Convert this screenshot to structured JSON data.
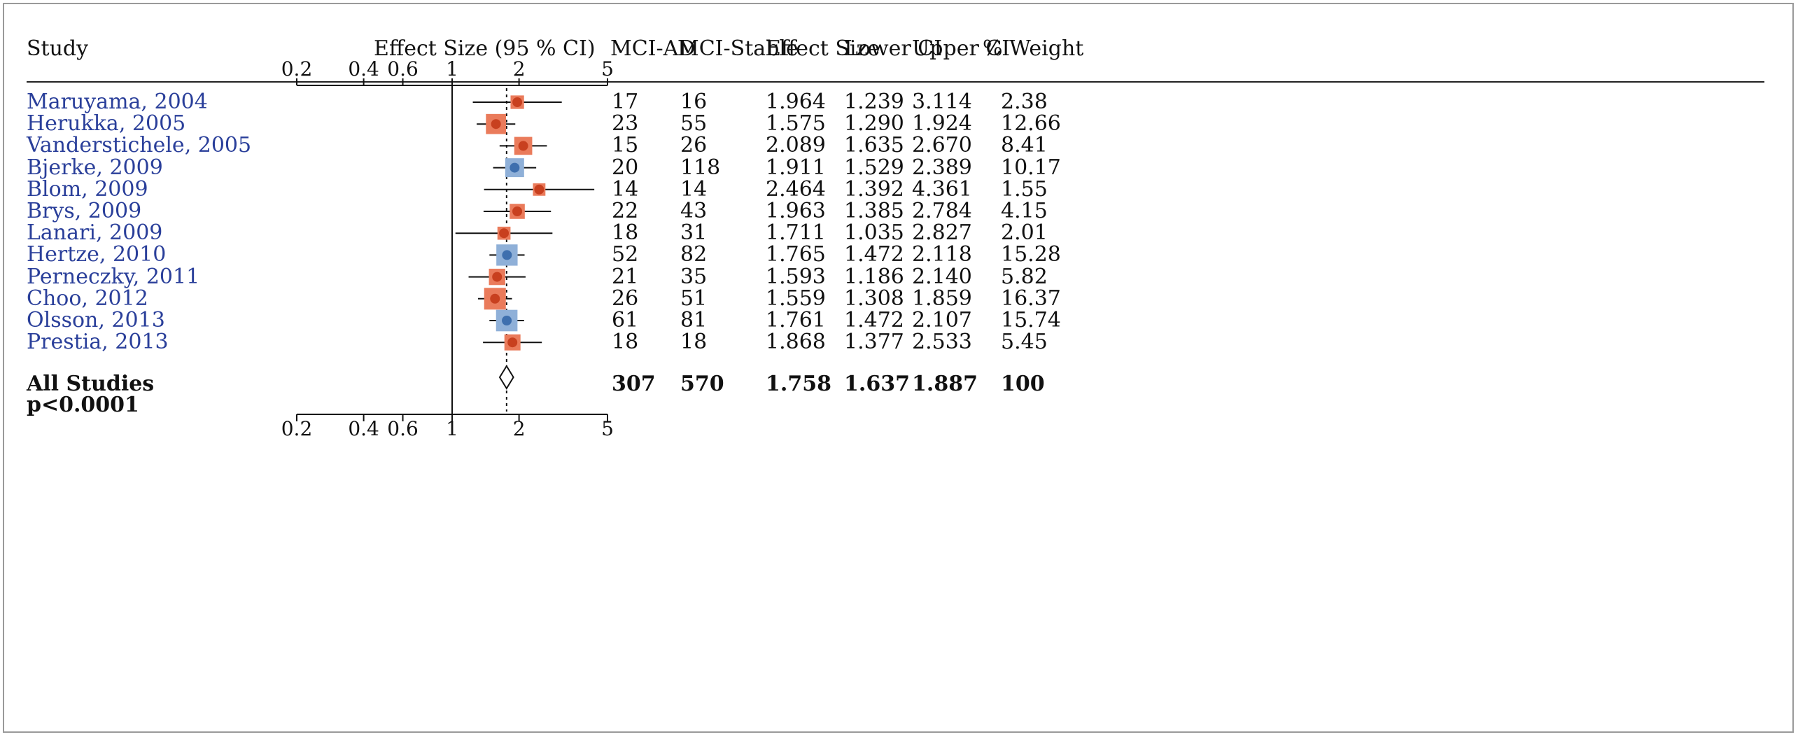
{
  "chart_data": {
    "type": "forest",
    "columns": {
      "study": "Study",
      "effect_ci": "Effect Size (95 % CI)",
      "mci_ad": "MCI-AD",
      "mci_stable": "MCI-Stable",
      "effect_size": "Effect Size",
      "lower_ci": "Lower CI",
      "upper_ci": "Upper CI",
      "weight": "% Weight"
    },
    "x_scale": "log",
    "x_ticks": [
      "0.2",
      "0.4",
      "0.6",
      "1",
      "2",
      "5"
    ],
    "x_tick_values": [
      0.2,
      0.4,
      0.6,
      1,
      2,
      5
    ],
    "x_range": [
      0.2,
      5
    ],
    "reference_line": 1,
    "pooled_line": 1.758,
    "colors": {
      "red_marker": "#c8401f",
      "red_box": "#ea7b5b",
      "blue_marker": "#3e6fae",
      "blue_box": "#8fb0d8",
      "study_text": "#2a3f9a"
    },
    "studies": [
      {
        "study": "Maruyama, 2004",
        "mci_ad": "17",
        "mci_stable": "16",
        "effect": "1.964",
        "lower": "1.239",
        "upper": "3.114",
        "weight": "2.38",
        "color": "red"
      },
      {
        "study": "Herukka, 2005",
        "mci_ad": "23",
        "mci_stable": "55",
        "effect": "1.575",
        "lower": "1.290",
        "upper": "1.924",
        "weight": "12.66",
        "color": "red"
      },
      {
        "study": "Vanderstichele, 2005",
        "mci_ad": "15",
        "mci_stable": "26",
        "effect": "2.089",
        "lower": "1.635",
        "upper": "2.670",
        "weight": "8.41",
        "color": "red"
      },
      {
        "study": "Bjerke, 2009",
        "mci_ad": "20",
        "mci_stable": "118",
        "effect": "1.911",
        "lower": "1.529",
        "upper": "2.389",
        "weight": "10.17",
        "color": "blue"
      },
      {
        "study": "Blom, 2009",
        "mci_ad": "14",
        "mci_stable": "14",
        "effect": "2.464",
        "lower": "1.392",
        "upper": "4.361",
        "weight": "1.55",
        "color": "red"
      },
      {
        "study": "Brys, 2009",
        "mci_ad": "22",
        "mci_stable": "43",
        "effect": "1.963",
        "lower": "1.385",
        "upper": "2.784",
        "weight": "4.15",
        "color": "red"
      },
      {
        "study": "Lanari, 2009",
        "mci_ad": "18",
        "mci_stable": "31",
        "effect": "1.711",
        "lower": "1.035",
        "upper": "2.827",
        "weight": "2.01",
        "color": "red"
      },
      {
        "study": "Hertze, 2010",
        "mci_ad": "52",
        "mci_stable": "82",
        "effect": "1.765",
        "lower": "1.472",
        "upper": "2.118",
        "weight": "15.28",
        "color": "blue"
      },
      {
        "study": "Perneczky, 2011",
        "mci_ad": "21",
        "mci_stable": "35",
        "effect": "1.593",
        "lower": "1.186",
        "upper": "2.140",
        "weight": "5.82",
        "color": "red"
      },
      {
        "study": "Choo, 2012",
        "mci_ad": "26",
        "mci_stable": "51",
        "effect": "1.559",
        "lower": "1.308",
        "upper": "1.859",
        "weight": "16.37",
        "color": "red"
      },
      {
        "study": "Olsson, 2013",
        "mci_ad": "61",
        "mci_stable": "81",
        "effect": "1.761",
        "lower": "1.472",
        "upper": "2.107",
        "weight": "15.74",
        "color": "blue"
      },
      {
        "study": "Prestia, 2013",
        "mci_ad": "18",
        "mci_stable": "18",
        "effect": "1.868",
        "lower": "1.377",
        "upper": "2.533",
        "weight": "5.45",
        "color": "red"
      }
    ],
    "summary": {
      "label": "All Studies",
      "p_value": "p<0.0001",
      "mci_ad": "307",
      "mci_stable": "570",
      "effect": "1.758",
      "lower": "1.637",
      "upper": "1.887",
      "weight": "100"
    }
  }
}
